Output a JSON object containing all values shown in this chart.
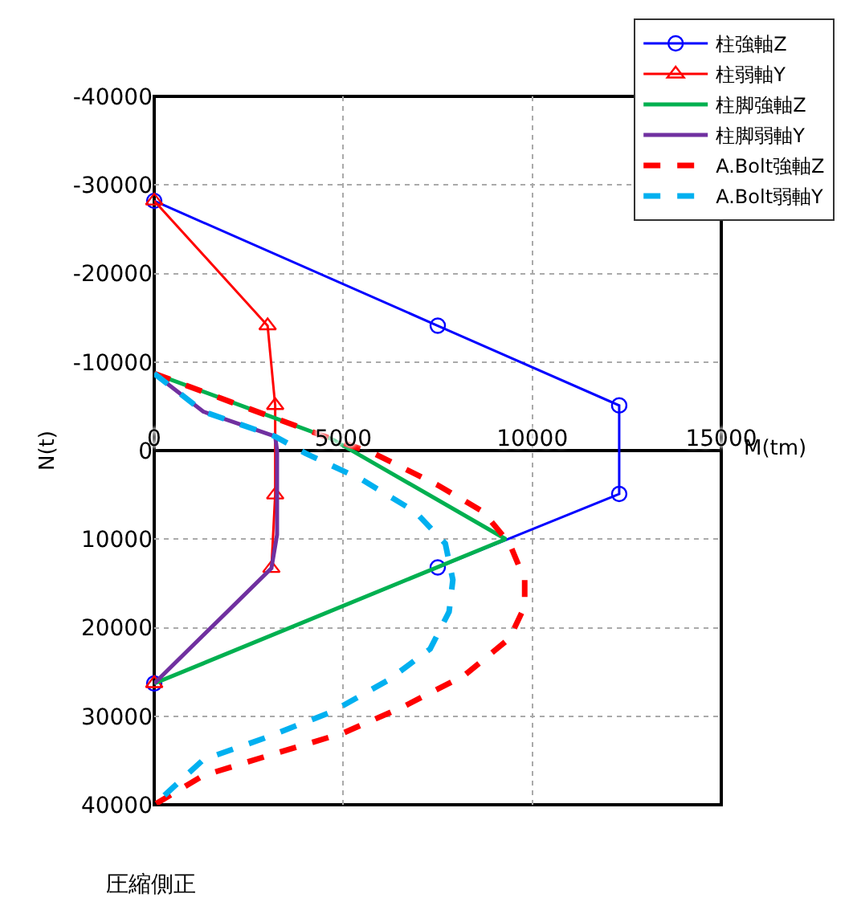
{
  "chart_data": {
    "type": "line",
    "xlabel": "M(tm)",
    "ylabel": "N(t)",
    "xlim": [
      0,
      15000
    ],
    "xticks": [
      0,
      5000,
      10000,
      15000
    ],
    "ylim": [
      40000,
      -40000
    ],
    "yticks": [
      -40000,
      -30000,
      -20000,
      -10000,
      0,
      10000,
      20000,
      30000,
      40000
    ],
    "grid": true,
    "legend": "top right",
    "annotations": [
      "圧縮側正"
    ],
    "series": [
      {
        "name": "柱強軸Z",
        "color": "#0000ff",
        "marker": "circle",
        "line_style": "solid",
        "x": [
          0,
          7500,
          12300,
          12300,
          7500,
          0
        ],
        "values": [
          -28200,
          -14100,
          -5100,
          4900,
          13200,
          26300
        ]
      },
      {
        "name": "柱弱軸Y",
        "color": "#ff0000",
        "marker": "triangle",
        "line_style": "solid",
        "x": [
          0,
          3000,
          3200,
          3200,
          3100,
          0
        ],
        "values": [
          -28200,
          -14100,
          -5100,
          5000,
          13300,
          26300
        ]
      },
      {
        "name": "柱脚強軸Z",
        "color": "#00b050",
        "marker": "none",
        "line_style": "solid",
        "x": [
          0,
          4700,
          9300,
          0
        ],
        "values": [
          -8700,
          -1300,
          10000,
          26300
        ]
      },
      {
        "name": "柱脚弱軸Y",
        "color": "#7030a0",
        "marker": "none",
        "line_style": "solid",
        "x": [
          0,
          1300,
          3200,
          3250,
          3250,
          3100,
          0
        ],
        "values": [
          -8700,
          -4400,
          -1600,
          0,
          9500,
          13300,
          26300
        ]
      },
      {
        "name": "A.Bolt強軸Z",
        "color": "#ff0000",
        "marker": "none",
        "line_style": "dashed",
        "x": [
          0,
          2400,
          4700,
          5800,
          7500,
          8700,
          9400,
          9800,
          9800,
          9400,
          8200,
          6600,
          5000,
          2900,
          1300,
          0
        ],
        "values": [
          -8700,
          -4900,
          -1300,
          300,
          3900,
          6900,
          10500,
          14600,
          17600,
          21200,
          25400,
          28900,
          31900,
          34600,
          36700,
          40000
        ]
      },
      {
        "name": "A.Bolt弱軸Y",
        "color": "#00b0f0",
        "marker": "none",
        "line_style": "dashed",
        "x": [
          0,
          1300,
          3200,
          4000,
          5500,
          6900,
          7700,
          7900,
          7800,
          7300,
          6200,
          4700,
          2900,
          1300,
          0
        ],
        "values": [
          -8700,
          -4400,
          -1600,
          300,
          3300,
          6900,
          10500,
          14600,
          18200,
          22400,
          25900,
          29500,
          32500,
          34900,
          40000
        ]
      }
    ]
  }
}
